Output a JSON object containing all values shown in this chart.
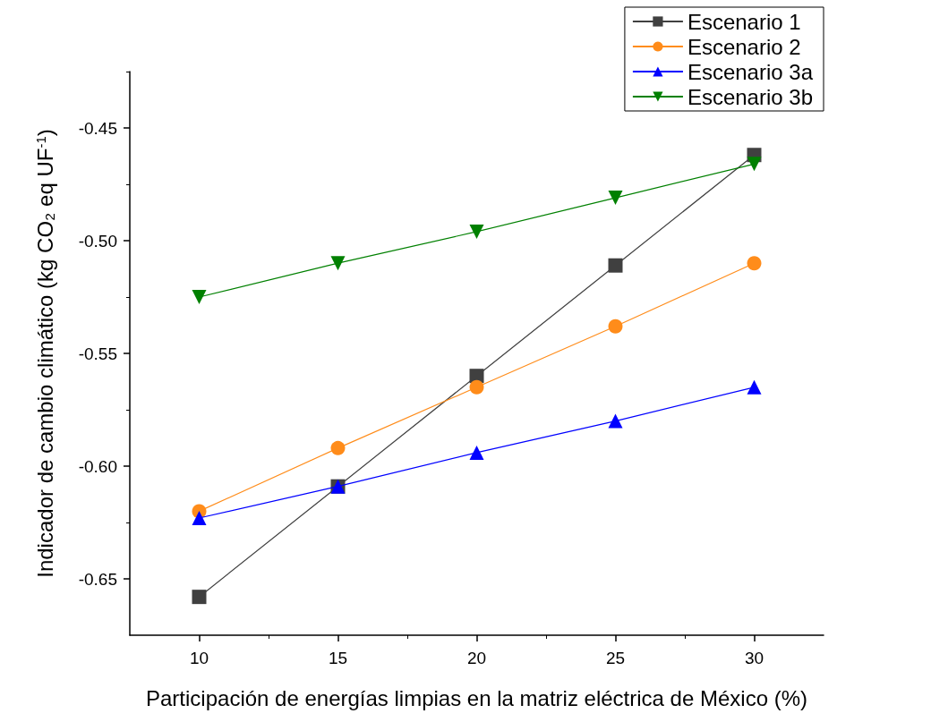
{
  "chart_data": {
    "type": "line",
    "xlabel": "Participación de energías limpias en la matriz eléctrica de México (%)",
    "ylabel": "Indicador de cambio climático (kg CO₂ eq UF$^{-1}$)",
    "x": [
      10,
      15,
      20,
      25,
      30
    ],
    "series": [
      {
        "name": "Escenario 1",
        "color": "#404040",
        "marker": "square",
        "values": [
          -0.658,
          -0.609,
          -0.56,
          -0.511,
          -0.462
        ]
      },
      {
        "name": "Escenario 2",
        "color": "#ff8c1a",
        "marker": "circle",
        "values": [
          -0.62,
          -0.592,
          -0.565,
          -0.538,
          -0.51
        ]
      },
      {
        "name": "Escenario 3a",
        "color": "#0000ff",
        "marker": "triangle",
        "values": [
          -0.623,
          -0.609,
          -0.594,
          -0.58,
          -0.565
        ]
      },
      {
        "name": "Escenario 3b",
        "color": "#008000",
        "marker": "triangle-down",
        "values": [
          -0.525,
          -0.51,
          -0.496,
          -0.481,
          -0.466
        ]
      }
    ],
    "xlim": [
      7.5,
      32.5
    ],
    "xticks": [
      10,
      15,
      20,
      25,
      30
    ],
    "ylim": [
      -0.675,
      -0.425
    ],
    "yticks": [
      {
        "value": -0.65,
        "label": "-0.65"
      },
      {
        "value": -0.6,
        "label": "-0.60"
      },
      {
        "value": -0.55,
        "label": "-0.55"
      },
      {
        "value": -0.5,
        "label": "-0.50"
      },
      {
        "value": -0.45,
        "label": "-0.45"
      }
    ],
    "grid": false,
    "legend": "top right",
    "line_style": "solid"
  }
}
